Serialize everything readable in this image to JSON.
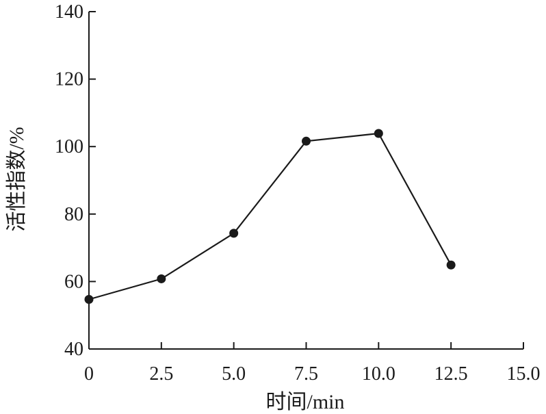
{
  "chart_data": {
    "type": "line",
    "title": "",
    "xlabel": "时间/min",
    "ylabel": "活性指数/%",
    "xlim": [
      0,
      15
    ],
    "ylim": [
      40,
      140
    ],
    "x_ticks": [
      "0",
      "2.5",
      "5.0",
      "7.5",
      "10.0",
      "12.5",
      "15.0"
    ],
    "x_tick_values": [
      0,
      2.5,
      5.0,
      7.5,
      10.0,
      12.5,
      15.0
    ],
    "y_ticks": [
      "40",
      "60",
      "80",
      "100",
      "120",
      "140"
    ],
    "y_tick_values": [
      40,
      60,
      80,
      100,
      120,
      140
    ],
    "grid": false,
    "legend": "none",
    "series": [
      {
        "x": [
          0,
          2.5,
          5.0,
          7.5,
          10.0,
          12.5
        ],
        "y": [
          54.7,
          60.8,
          74.3,
          101.6,
          103.9,
          64.9
        ],
        "connected_until_index": 4,
        "color": "#1a1a1a"
      }
    ]
  }
}
